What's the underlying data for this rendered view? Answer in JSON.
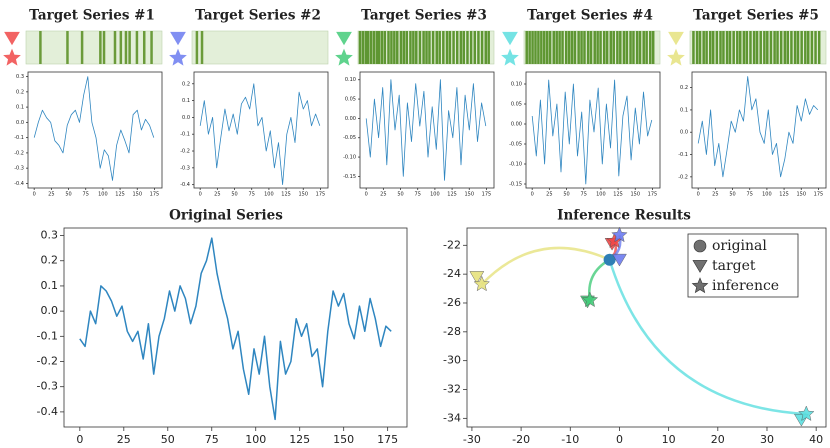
{
  "chart_data": [
    {
      "type": "line",
      "title": "Target Series #1",
      "color": "#f04848",
      "line_color": "#2f86c0",
      "highlight_color": "#6b9b3a",
      "highlight_background": "#e3efd9",
      "highlight_positions": [
        18,
        55,
        75,
        100,
        105,
        120,
        128,
        135,
        140,
        150,
        160,
        170
      ],
      "x": [
        0,
        6,
        12,
        18,
        24,
        30,
        36,
        42,
        48,
        54,
        60,
        66,
        72,
        78,
        84,
        90,
        96,
        102,
        108,
        114,
        120,
        126,
        132,
        138,
        144,
        150,
        156,
        162,
        168,
        174
      ],
      "values": [
        -0.1,
        0.0,
        0.08,
        0.03,
        0.0,
        -0.12,
        -0.15,
        -0.2,
        -0.02,
        0.05,
        0.08,
        0.0,
        0.18,
        0.3,
        0.0,
        -0.1,
        -0.3,
        -0.18,
        -0.22,
        -0.38,
        -0.15,
        -0.05,
        -0.12,
        -0.2,
        0.05,
        0.08,
        -0.05,
        0.02,
        -0.02,
        -0.1
      ],
      "xlim": [
        -9,
        186
      ],
      "xticks": [
        0,
        25,
        50,
        75,
        100,
        125,
        150,
        175
      ],
      "ylim": [
        -0.43,
        0.33
      ],
      "yticks": [
        0.3,
        0.2,
        0.1,
        {
          "value": 0,
          "label": "0.0"
        },
        -0.1,
        -0.2,
        -0.3,
        -0.4
      ]
    },
    {
      "type": "line",
      "title": "Target Series #2",
      "color": "#6c7cf0",
      "line_color": "#2f86c0",
      "highlight_color": "#6b9b3a",
      "highlight_background": "#e3efd9",
      "highlight_positions": [
        5,
        12
      ],
      "x": [
        0,
        6,
        12,
        18,
        24,
        30,
        36,
        42,
        48,
        54,
        60,
        66,
        72,
        78,
        84,
        90,
        96,
        102,
        108,
        114,
        120,
        126,
        132,
        138,
        144,
        150,
        156,
        162,
        168,
        174
      ],
      "values": [
        -0.05,
        0.1,
        -0.1,
        0.0,
        -0.3,
        -0.12,
        0.05,
        -0.08,
        0.02,
        -0.1,
        0.08,
        0.12,
        0.05,
        0.2,
        -0.05,
        0.0,
        -0.2,
        -0.08,
        -0.3,
        -0.15,
        -0.4,
        -0.1,
        0.0,
        -0.15,
        0.15,
        0.05,
        0.1,
        -0.05,
        0.02,
        -0.05
      ],
      "xlim": [
        -9,
        186
      ],
      "xticks": [
        0,
        25,
        50,
        75,
        100,
        125,
        150,
        175
      ],
      "ylim": [
        -0.42,
        0.27
      ],
      "yticks": [
        0.2,
        0.1,
        {
          "value": 0,
          "label": "0.0"
        },
        -0.1,
        -0.2,
        -0.3,
        -0.4
      ]
    },
    {
      "type": "line",
      "title": "Target Series #3",
      "color": "#44cc7a",
      "line_color": "#2f86c0",
      "highlight_color": "#5e9632",
      "highlight_background": "#e3efd9",
      "highlight_positions": [
        1,
        5,
        9,
        12,
        16,
        20,
        24,
        27,
        31,
        35,
        40,
        44,
        48,
        52,
        57,
        61,
        65,
        70,
        74,
        78,
        83,
        88,
        92,
        96,
        101,
        106,
        110,
        115,
        120,
        124,
        129,
        134,
        139,
        143,
        148,
        153,
        158,
        163,
        168,
        173,
        177
      ],
      "x": [
        0,
        6,
        12,
        18,
        24,
        30,
        36,
        42,
        48,
        54,
        60,
        66,
        72,
        78,
        84,
        90,
        96,
        102,
        108,
        114,
        120,
        126,
        132,
        138,
        144,
        150,
        156,
        162,
        168,
        174
      ],
      "values": [
        0.0,
        -0.1,
        0.05,
        -0.05,
        0.08,
        -0.12,
        0.1,
        -0.03,
        0.06,
        -0.15,
        0.04,
        -0.06,
        0.09,
        -0.02,
        0.07,
        -0.1,
        0.03,
        -0.08,
        0.1,
        -0.16,
        0.02,
        -0.05,
        0.08,
        -0.12,
        0.06,
        -0.03,
        0.09,
        -0.06,
        0.04,
        -0.02
      ],
      "xlim": [
        -9,
        186
      ],
      "xticks": [
        0,
        25,
        50,
        75,
        100,
        125,
        150,
        175
      ],
      "ylim": [
        -0.18,
        0.12
      ],
      "yticks": [
        {
          "value": 0.1,
          "label": "0.10"
        },
        {
          "value": 0.05,
          "label": "0.05"
        },
        {
          "value": 0,
          "label": "0.00"
        },
        {
          "value": -0.05,
          "label": "-0.05"
        },
        {
          "value": -0.1,
          "label": "-0.10"
        },
        {
          "value": -0.15,
          "label": "-0.15"
        }
      ]
    },
    {
      "type": "line",
      "title": "Target Series #4",
      "color": "#5ddfe0",
      "line_color": "#2f86c0",
      "highlight_color": "#5e9632",
      "highlight_background": "#e3efd9",
      "highlight_positions": [
        2,
        6,
        10,
        14,
        18,
        22,
        26,
        30,
        34,
        39,
        43,
        47,
        51,
        56,
        60,
        64,
        68,
        73,
        77,
        81,
        86,
        90,
        95,
        99,
        103,
        108,
        112,
        117,
        121,
        126,
        130,
        135,
        139,
        144,
        148,
        153,
        157,
        162,
        166,
        171,
        175
      ],
      "x": [
        0,
        6,
        12,
        18,
        24,
        30,
        36,
        42,
        48,
        54,
        60,
        66,
        72,
        78,
        84,
        90,
        96,
        102,
        108,
        114,
        120,
        126,
        132,
        138,
        144,
        150,
        156,
        162,
        168,
        174
      ],
      "values": [
        0.02,
        -0.08,
        0.06,
        -0.1,
        0.11,
        -0.03,
        0.05,
        -0.12,
        0.08,
        -0.05,
        0.1,
        -0.08,
        0.03,
        -0.15,
        0.06,
        -0.02,
        0.09,
        -0.1,
        0.05,
        -0.06,
        0.11,
        -0.13,
        0.02,
        0.07,
        -0.09,
        0.04,
        -0.05,
        0.08,
        -0.03,
        0.01
      ],
      "xlim": [
        -9,
        186
      ],
      "xticks": [
        0,
        25,
        50,
        75,
        100,
        125,
        150,
        175
      ],
      "ylim": [
        -0.16,
        0.13
      ],
      "yticks": [
        {
          "value": 0.1,
          "label": "0.10"
        },
        {
          "value": 0.05,
          "label": "0.05"
        },
        {
          "value": 0,
          "label": "0.00"
        },
        {
          "value": -0.05,
          "label": "-0.05"
        },
        {
          "value": -0.1,
          "label": "-0.10"
        },
        {
          "value": -0.15,
          "label": "-0.15"
        }
      ]
    },
    {
      "type": "line",
      "title": "Target Series #5",
      "color": "#e6e27e",
      "line_color": "#2f86c0",
      "highlight_color": "#5e9632",
      "highlight_background": "#e3efd9",
      "highlight_positions": [
        3,
        8,
        12,
        17,
        21,
        26,
        30,
        35,
        40,
        44,
        49,
        53,
        58,
        63,
        67,
        72,
        76,
        81,
        86,
        90,
        95,
        100,
        104,
        109,
        114,
        118,
        123,
        128,
        132,
        137,
        142,
        146,
        151,
        156,
        160,
        165,
        170,
        175
      ],
      "x": [
        0,
        6,
        12,
        18,
        24,
        30,
        36,
        42,
        48,
        54,
        60,
        66,
        72,
        78,
        84,
        90,
        96,
        102,
        108,
        114,
        120,
        126,
        132,
        138,
        144,
        150,
        156,
        162,
        168,
        174
      ],
      "values": [
        -0.05,
        0.05,
        -0.1,
        0.1,
        -0.15,
        -0.05,
        -0.2,
        -0.08,
        0.05,
        0.0,
        0.1,
        0.05,
        0.25,
        0.1,
        0.15,
        0.0,
        -0.05,
        0.1,
        -0.1,
        -0.05,
        -0.2,
        -0.12,
        0.0,
        -0.05,
        0.12,
        0.05,
        0.15,
        0.08,
        0.12,
        0.1
      ],
      "xlim": [
        -9,
        186
      ],
      "xticks": [
        0,
        25,
        50,
        75,
        100,
        125,
        150,
        175
      ],
      "ylim": [
        -0.25,
        0.27
      ],
      "yticks": [
        0.2,
        0.1,
        {
          "value": 0,
          "label": "0.0"
        },
        -0.1,
        -0.2
      ]
    },
    {
      "type": "line",
      "title": "Original Series",
      "line_color": "#2f86c0",
      "x": [
        0,
        3,
        6,
        9,
        12,
        15,
        18,
        21,
        24,
        27,
        30,
        33,
        36,
        39,
        42,
        45,
        48,
        51,
        54,
        57,
        60,
        63,
        66,
        69,
        72,
        75,
        78,
        81,
        84,
        87,
        90,
        93,
        96,
        99,
        102,
        105,
        108,
        111,
        114,
        117,
        120,
        123,
        126,
        129,
        132,
        135,
        138,
        141,
        144,
        147,
        150,
        153,
        156,
        159,
        162,
        165,
        168,
        171,
        174,
        177
      ],
      "values": [
        -0.11,
        -0.14,
        0.0,
        -0.05,
        0.1,
        0.08,
        0.04,
        -0.02,
        0.02,
        -0.08,
        -0.12,
        -0.08,
        -0.19,
        -0.05,
        -0.25,
        -0.1,
        -0.03,
        0.08,
        0.0,
        0.1,
        0.05,
        -0.05,
        0.02,
        0.15,
        0.2,
        0.29,
        0.15,
        0.05,
        -0.03,
        -0.15,
        -0.08,
        -0.23,
        -0.33,
        -0.15,
        -0.25,
        -0.1,
        -0.3,
        -0.43,
        -0.12,
        -0.25,
        -0.2,
        -0.03,
        -0.1,
        -0.05,
        -0.18,
        -0.15,
        -0.3,
        -0.08,
        0.08,
        0.02,
        0.07,
        -0.05,
        -0.11,
        0.02,
        -0.08,
        0.05,
        -0.03,
        -0.14,
        -0.06,
        -0.08
      ],
      "xlim": [
        -9,
        186
      ],
      "xticks": [
        0,
        25,
        50,
        75,
        100,
        125,
        150,
        175
      ],
      "ylim": [
        -0.46,
        0.33
      ],
      "yticks": [
        0.3,
        0.2,
        0.1,
        {
          "value": 0,
          "label": "0.0"
        },
        -0.1,
        -0.2,
        -0.3,
        -0.4
      ]
    },
    {
      "type": "scatter",
      "title": "Inference Results",
      "legend": [
        "original",
        "target",
        "inference"
      ],
      "legend_color": "#707070",
      "original": {
        "x": -2,
        "y": -23,
        "color": "#2e7fb5"
      },
      "colors": [
        "#f04848",
        "#6c7cf0",
        "#44cc7a",
        "#5ddfe0",
        "#e6e27e"
      ],
      "targets": {
        "x": [
          -1.5,
          0,
          -6.5,
          37,
          -29
        ],
        "y": [
          -21.9,
          -23,
          -25.9,
          -34.1,
          -24.2
        ]
      },
      "inferences": {
        "x": [
          -1,
          0,
          -6,
          38,
          -28
        ],
        "y": [
          -21.7,
          -21.3,
          -25.8,
          -33.7,
          -24.7
        ]
      },
      "xlim": [
        -31,
        42
      ],
      "xticks": [
        -30,
        -20,
        -10,
        0,
        10,
        20,
        30,
        40
      ],
      "ylim": [
        -34.6,
        -20.8
      ],
      "yticks": [
        -22,
        -24,
        -26,
        -28,
        -30,
        -32,
        -34
      ]
    }
  ]
}
